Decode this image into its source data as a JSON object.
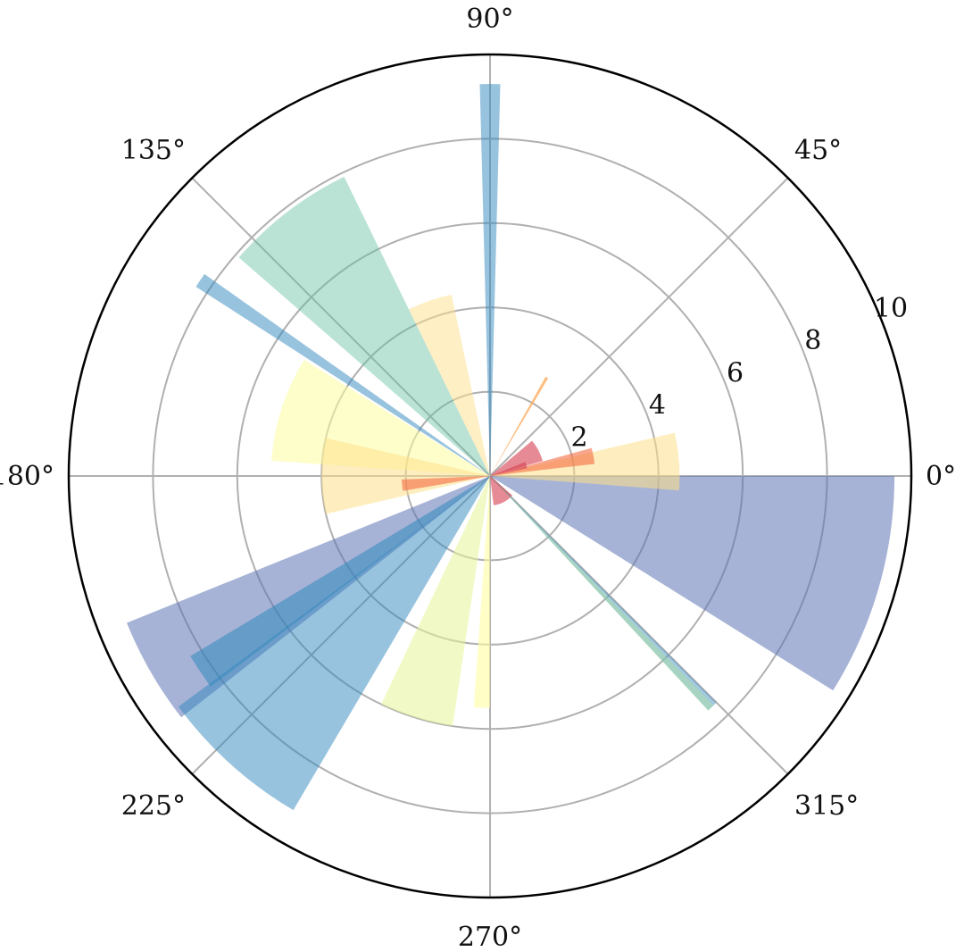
{
  "chart_data": {
    "type": "polar-bar",
    "title": "",
    "r_range": [
      0,
      10
    ],
    "grid": true,
    "radial_ticks": [
      {
        "value": 2,
        "label": "2"
      },
      {
        "value": 4,
        "label": "4"
      },
      {
        "value": 6,
        "label": "6"
      },
      {
        "value": 8,
        "label": "8"
      },
      {
        "value": 10,
        "label": "10"
      }
    ],
    "angle_ticks": [
      {
        "value": 0,
        "label": "0°"
      },
      {
        "value": 45,
        "label": "45°"
      },
      {
        "value": 90,
        "label": "90°"
      },
      {
        "value": 135,
        "label": "135°"
      },
      {
        "value": 180,
        "label": "180°"
      },
      {
        "value": 225,
        "label": "225°"
      },
      {
        "value": 270,
        "label": "270°"
      },
      {
        "value": 315,
        "label": "315°"
      }
    ],
    "bars": [
      {
        "theta_deg": 344.0,
        "width_deg": 32.0,
        "r": 9.6,
        "color": "#5e75b4",
        "alpha": 0.55
      },
      {
        "theta_deg": 4.4,
        "width_deg": 17.5,
        "r": 4.5,
        "color": "#fee08b",
        "alpha": 0.55
      },
      {
        "theta_deg": 11.0,
        "width_deg": 8.8,
        "r": 2.5,
        "color": "#f46d43",
        "alpha": 0.6
      },
      {
        "theta_deg": 28.0,
        "width_deg": 24.0,
        "r": 1.3,
        "color": "#d53e4f",
        "alpha": 0.6
      },
      {
        "theta_deg": 16.7,
        "width_deg": 10.0,
        "r": 0.9,
        "color": "#d53e4f",
        "alpha": 0.6
      },
      {
        "theta_deg": 60.0,
        "width_deg": 1.5,
        "r": 2.7,
        "color": "#fdae61",
        "alpha": 0.8
      },
      {
        "theta_deg": 90.0,
        "width_deg": 3.0,
        "r": 9.3,
        "color": "#3288bd",
        "alpha": 0.5
      },
      {
        "theta_deg": 109.0,
        "width_deg": 14.0,
        "r": 4.4,
        "color": "#fee08b",
        "alpha": 0.5
      },
      {
        "theta_deg": 127.5,
        "width_deg": 23.0,
        "r": 7.9,
        "color": "#66c2a5",
        "alpha": 0.45
      },
      {
        "theta_deg": 146.0,
        "width_deg": 2.5,
        "r": 8.3,
        "color": "#3288bd",
        "alpha": 0.5
      },
      {
        "theta_deg": 162.0,
        "width_deg": 28.0,
        "r": 5.2,
        "color": "#fefea0",
        "alpha": 0.55
      },
      {
        "theta_deg": 180.0,
        "width_deg": 26.0,
        "r": 4.0,
        "color": "#fee08b",
        "alpha": 0.55
      },
      {
        "theta_deg": 186.0,
        "width_deg": 7.5,
        "r": 2.1,
        "color": "#f46d43",
        "alpha": 0.6
      },
      {
        "theta_deg": 210.0,
        "width_deg": 16.0,
        "r": 9.3,
        "color": "#5e75b4",
        "alpha": 0.55
      },
      {
        "theta_deg": 214.0,
        "width_deg": 6.0,
        "r": 8.3,
        "color": "#3288bd",
        "alpha": 0.55
      },
      {
        "theta_deg": 228.0,
        "width_deg": 23.0,
        "r": 9.2,
        "color": "#3288bd",
        "alpha": 0.5
      },
      {
        "theta_deg": 253.0,
        "width_deg": 17.0,
        "r": 6.0,
        "color": "#e6f598",
        "alpha": 0.55
      },
      {
        "theta_deg": 268.0,
        "width_deg": 4.0,
        "r": 5.5,
        "color": "#fefea0",
        "alpha": 0.6
      },
      {
        "theta_deg": 298.0,
        "width_deg": 42.0,
        "r": 0.7,
        "color": "#d53e4f",
        "alpha": 0.6
      },
      {
        "theta_deg": 314.0,
        "width_deg": 2.0,
        "r": 7.6,
        "color": "#3288bd",
        "alpha": 0.45
      },
      {
        "theta_deg": 313.6,
        "width_deg": 1.4,
        "r": 7.6,
        "color": "#abdda4",
        "alpha": 0.5
      }
    ]
  }
}
